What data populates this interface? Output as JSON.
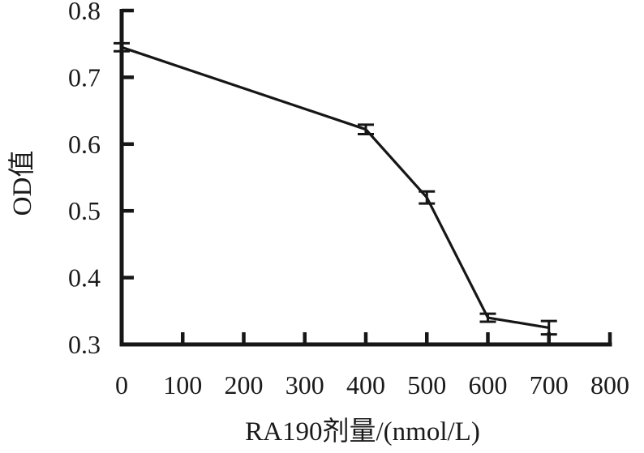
{
  "chart_data": {
    "type": "line",
    "title": "",
    "xlabel": "RA190剂量/(nmol/L)",
    "ylabel": "OD值",
    "series": [
      {
        "name": "OD",
        "x": [
          0,
          400,
          500,
          600,
          700
        ],
        "y": [
          0.745,
          0.622,
          0.52,
          0.34,
          0.325
        ],
        "yerr": [
          0.006,
          0.007,
          0.009,
          0.006,
          0.01
        ]
      }
    ],
    "xlim": [
      0,
      800
    ],
    "ylim": [
      0.3,
      0.8
    ],
    "xticks": [
      0,
      100,
      200,
      300,
      400,
      500,
      600,
      700,
      800
    ],
    "yticks": [
      0.8,
      0.7,
      0.6,
      0.5,
      0.4,
      0.3
    ],
    "x_tick_labels": [
      "0",
      "100",
      "200",
      "300",
      "400",
      "500",
      "600",
      "700",
      "800"
    ],
    "y_tick_labels": [
      "0.8",
      "0.7",
      "0.6",
      "0.5",
      "0.4",
      "0.3"
    ],
    "grid": false,
    "legend": false,
    "marker": "none",
    "error_bars": true,
    "line_color": "#161616",
    "text_color": "#1a1a1a",
    "background_color": "#ffffff"
  }
}
